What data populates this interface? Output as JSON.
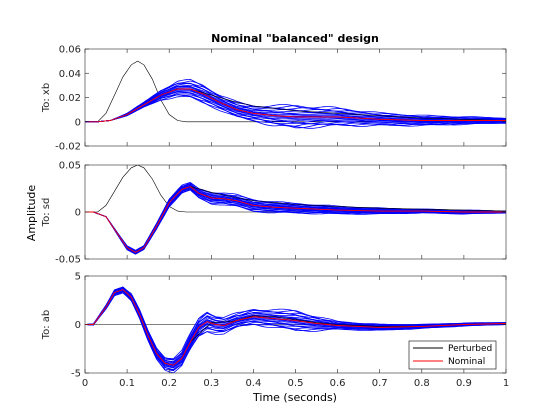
{
  "chart_data": {
    "type": "line",
    "title": "Nominal \"balanced\" design",
    "xlabel": "Time (seconds)",
    "ylabel": "Amplitude",
    "xlim": [
      0,
      1
    ],
    "xticks": [
      "0",
      "0.1",
      "0.2",
      "0.3",
      "0.4",
      "0.5",
      "0.6",
      "0.7",
      "0.8",
      "0.9",
      "1"
    ],
    "grid": false,
    "legend_placement": "bottom-right",
    "legend": [
      {
        "name": "Perturbed",
        "color": "#0000ff"
      },
      {
        "name": "Nominal",
        "color": "#ff0000"
      }
    ],
    "colors": {
      "input": "#000000",
      "perturbed": "#0000ff",
      "nominal": "#ff0000"
    },
    "perturbed_count": 20,
    "panels": [
      {
        "ylabel": "To: xb",
        "ylim": [
          -0.02,
          0.06
        ],
        "yticks": [
          "-0.02",
          "0",
          "0.02",
          "0.04",
          "0.06"
        ],
        "yvals": [
          -0.02,
          0,
          0.02,
          0.04,
          0.06
        ],
        "input": {
          "x": [
            0,
            0.03,
            0.05,
            0.07,
            0.09,
            0.11,
            0.125,
            0.14,
            0.16,
            0.18,
            0.2,
            0.22,
            0.24,
            0.25,
            1
          ],
          "y": [
            0,
            0,
            0.007,
            0.022,
            0.037,
            0.047,
            0.05,
            0.047,
            0.035,
            0.018,
            0.006,
            0.001,
            0,
            0,
            0
          ]
        },
        "nominal": {
          "x": [
            0,
            0.03,
            0.06,
            0.1,
            0.14,
            0.18,
            0.22,
            0.25,
            0.28,
            0.32,
            0.36,
            0.4,
            0.45,
            0.5,
            0.55,
            0.6,
            0.65,
            0.7,
            0.8,
            0.9,
            1
          ],
          "y": [
            0,
            0,
            0.001,
            0.006,
            0.014,
            0.022,
            0.027,
            0.027,
            0.023,
            0.016,
            0.01,
            0.007,
            0.005,
            0.004,
            0.004,
            0.004,
            0.003,
            0.002,
            0.001,
            0.001,
            0.001
          ]
        },
        "spread": {
          "x": [
            0,
            0.03,
            0.06,
            0.1,
            0.14,
            0.18,
            0.22,
            0.25,
            0.28,
            0.32,
            0.36,
            0.4,
            0.45,
            0.5,
            0.55,
            0.6,
            0.65,
            0.7,
            0.8,
            0.9,
            1
          ],
          "d": [
            0,
            0,
            0,
            0.001,
            0.002,
            0.004,
            0.006,
            0.007,
            0.007,
            0.006,
            0.006,
            0.006,
            0.008,
            0.009,
            0.008,
            0.007,
            0.006,
            0.005,
            0.004,
            0.003,
            0.002
          ]
        },
        "tail": {
          "x": [
            0.25,
            0.3,
            0.35,
            0.4,
            0.45,
            0.5,
            0.6,
            0.7,
            0.8,
            0.9,
            1
          ],
          "y": [
            0.027,
            0.022,
            0.017,
            0.013,
            0.011,
            0.009,
            0.007,
            0.005,
            0.003,
            0.002,
            0.001
          ]
        }
      },
      {
        "ylabel": "To: sd",
        "ylim": [
          -0.05,
          0.05
        ],
        "yticks": [
          "-0.05",
          "0",
          "0.05"
        ],
        "yvals": [
          -0.05,
          0,
          0.05
        ],
        "input": {
          "x": [
            0,
            0.03,
            0.05,
            0.07,
            0.09,
            0.11,
            0.125,
            0.14,
            0.16,
            0.18,
            0.2,
            0.22,
            0.24,
            0.25,
            1
          ],
          "y": [
            0,
            0,
            0.007,
            0.022,
            0.037,
            0.047,
            0.05,
            0.047,
            0.035,
            0.018,
            0.006,
            0.001,
            0,
            0,
            0
          ]
        },
        "nominal": {
          "x": [
            0,
            0.02,
            0.05,
            0.08,
            0.1,
            0.12,
            0.14,
            0.17,
            0.2,
            0.23,
            0.25,
            0.27,
            0.3,
            0.33,
            0.36,
            0.4,
            0.45,
            0.5,
            0.6,
            0.7,
            0.8,
            0.9,
            1
          ],
          "y": [
            0,
            0,
            -0.005,
            -0.025,
            -0.038,
            -0.043,
            -0.038,
            -0.015,
            0.01,
            0.024,
            0.027,
            0.02,
            0.015,
            0.014,
            0.012,
            0.007,
            0.005,
            0.004,
            0.002,
            0.001,
            0.001,
            0,
            0
          ]
        },
        "spread": {
          "x": [
            0,
            0.05,
            0.1,
            0.14,
            0.2,
            0.25,
            0.3,
            0.35,
            0.4,
            0.5,
            0.6,
            0.7,
            0.8,
            0.9,
            1
          ],
          "d": [
            0,
            0,
            0.002,
            0.002,
            0.004,
            0.004,
            0.006,
            0.006,
            0.006,
            0.005,
            0.004,
            0.003,
            0.002,
            0.002,
            0.001
          ]
        },
        "tail": {
          "x": [
            0.25,
            0.3,
            0.35,
            0.4,
            0.45,
            0.5,
            0.6,
            0.7,
            0.8,
            0.9,
            1
          ],
          "y": [
            0.027,
            0.021,
            0.016,
            0.012,
            0.01,
            0.008,
            0.006,
            0.004,
            0.003,
            0.002,
            0.001
          ]
        }
      },
      {
        "ylabel": "To: ab",
        "ylim": [
          -5,
          5
        ],
        "yticks": [
          "-5",
          "0",
          "5"
        ],
        "yvals": [
          -5,
          0,
          5
        ],
        "input": {
          "x": [
            0,
            1
          ],
          "y": [
            0,
            0
          ]
        },
        "nominal": {
          "x": [
            0,
            0.02,
            0.05,
            0.07,
            0.09,
            0.11,
            0.13,
            0.15,
            0.17,
            0.19,
            0.21,
            0.23,
            0.25,
            0.27,
            0.29,
            0.31,
            0.33,
            0.36,
            0.4,
            0.45,
            0.5,
            0.55,
            0.6,
            0.7,
            0.8,
            0.9,
            1
          ],
          "y": [
            0,
            0,
            1.8,
            3.3,
            3.6,
            2.8,
            1,
            -1.2,
            -3,
            -4,
            -4.2,
            -3.5,
            -1.8,
            -0.3,
            0.3,
            0,
            -0.1,
            0.4,
            0.8,
            0.6,
            0.4,
            0.1,
            -0.1,
            -0.3,
            -0.2,
            0,
            0.1
          ]
        },
        "spread": {
          "x": [
            0,
            0.03,
            0.07,
            0.1,
            0.14,
            0.18,
            0.21,
            0.25,
            0.29,
            0.33,
            0.37,
            0.42,
            0.5,
            0.55,
            0.6,
            0.7,
            0.8,
            0.9,
            1
          ],
          "d": [
            0,
            0.1,
            0.3,
            0.3,
            0.5,
            0.6,
            0.7,
            0.8,
            1,
            0.8,
            0.7,
            0.8,
            1,
            0.7,
            0.4,
            0.3,
            0.2,
            0.15,
            0.1
          ]
        },
        "tail": {
          "x": [
            0.25,
            0.3,
            0.35,
            0.4,
            0.45,
            0.5,
            0.55,
            0.6,
            0.7,
            0.8,
            0.9,
            1
          ],
          "y": [
            -1.8,
            0.2,
            0.3,
            0.9,
            0.8,
            0.5,
            0.2,
            0,
            -0.2,
            -0.2,
            0,
            0.1
          ]
        }
      }
    ]
  }
}
